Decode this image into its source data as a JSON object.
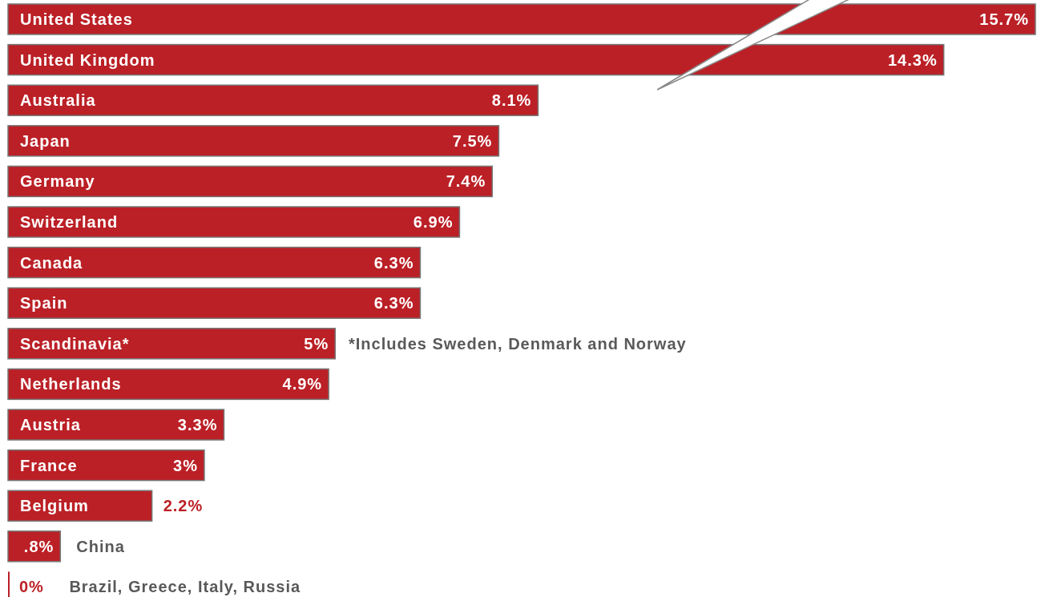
{
  "chart_data": {
    "type": "bar",
    "orientation": "horizontal",
    "color": "#bb2026",
    "xlim": [
      0,
      15.7
    ],
    "categories": [
      "United States",
      "United Kingdom",
      "Australia",
      "Japan",
      "Germany",
      "Switzerland",
      "Canada",
      "Spain",
      "Scandinavia*",
      "Netherlands",
      "Austria",
      "France",
      "Belgium",
      "China",
      "Brazil, Greece, Italy, Russia"
    ],
    "values": [
      15.7,
      14.3,
      8.1,
      7.5,
      7.4,
      6.9,
      6.3,
      6.3,
      5,
      4.9,
      3.3,
      3,
      2.2,
      0.8,
      0
    ],
    "value_labels": [
      "15.7%",
      "14.3%",
      "8.1%",
      "7.5%",
      "7.4%",
      "6.9%",
      "6.3%",
      "6.3%",
      "5%",
      "4.9%",
      "3.3%",
      "3%",
      "2.2%",
      ".8%",
      "0%"
    ],
    "annotations": [
      "*Includes Sweden, Denmark and Norway"
    ]
  }
}
